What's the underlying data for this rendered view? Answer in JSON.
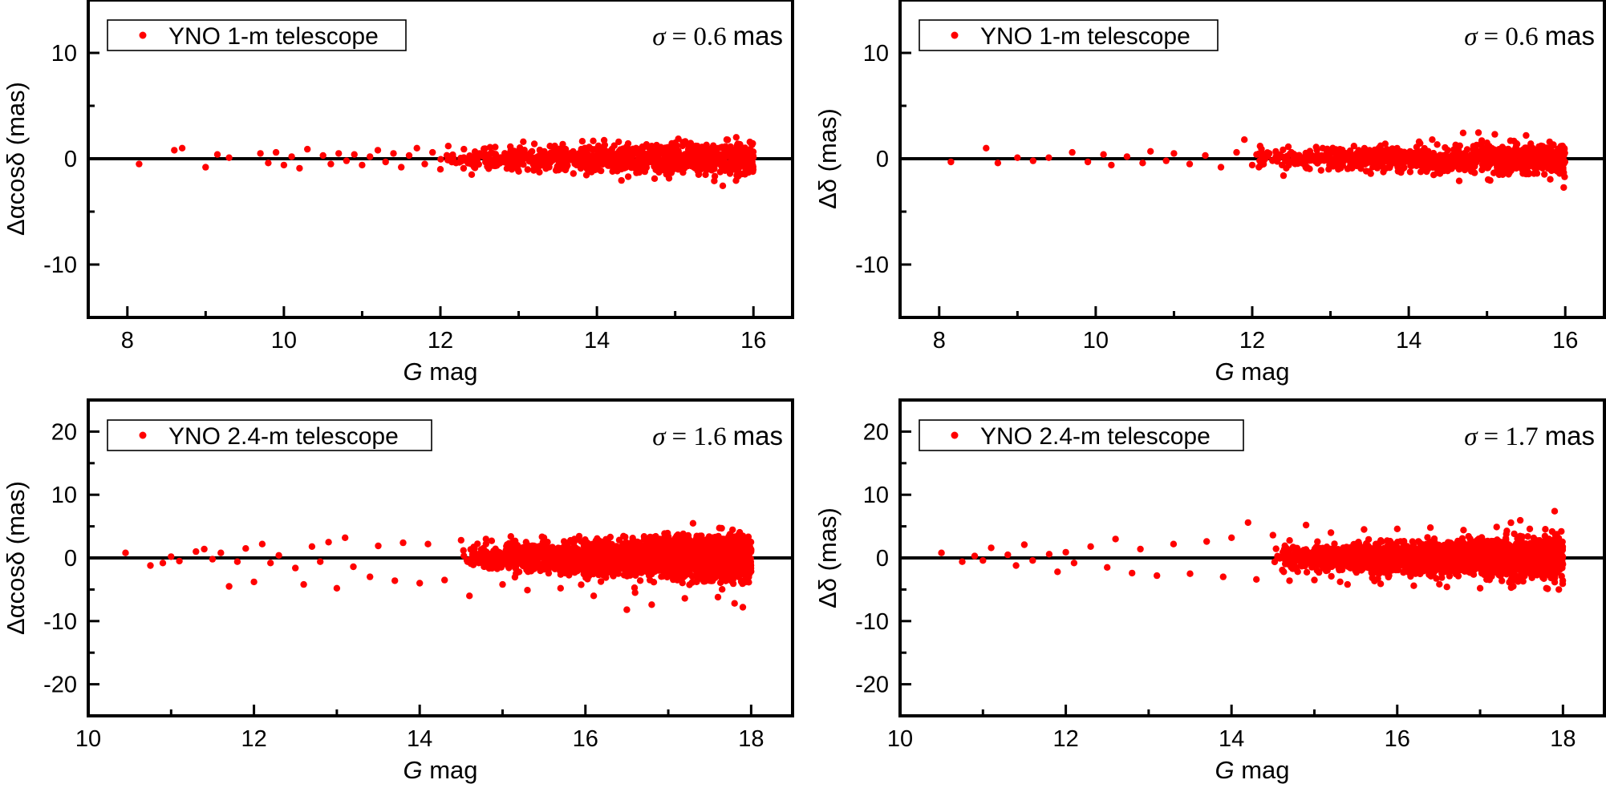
{
  "chart_data": [
    {
      "type": "scatter",
      "legend_label": "YNO 1-m telescope",
      "legend_placement": "top-left",
      "sigma_label": "σ = 0.6 mas",
      "sigma_symbol": "σ",
      "sigma_value": "= 0.6",
      "sigma_unit": "mas",
      "xlabel_italic": "G",
      "xlabel_rest": " mag",
      "ylabel": "Δαcosδ (mas)",
      "xlim": [
        7.5,
        16.5
      ],
      "ylim": [
        -15,
        15
      ],
      "xticks": [
        8,
        10,
        12,
        14,
        16
      ],
      "yticks": [
        -10,
        0,
        10
      ],
      "color": "#ff0000",
      "points": [
        [
          8.15,
          -0.5
        ],
        [
          8.6,
          0.8
        ],
        [
          8.7,
          1.0
        ],
        [
          9.0,
          -0.8
        ],
        [
          9.15,
          0.4
        ],
        [
          9.3,
          0.1
        ],
        [
          9.7,
          0.5
        ],
        [
          9.8,
          -0.4
        ],
        [
          9.9,
          0.6
        ],
        [
          10.0,
          -0.6
        ],
        [
          10.1,
          0.2
        ],
        [
          10.2,
          -0.9
        ],
        [
          10.3,
          0.9
        ],
        [
          10.5,
          0.3
        ],
        [
          10.6,
          -0.5
        ],
        [
          10.7,
          0.5
        ],
        [
          10.8,
          -0.2
        ],
        [
          10.9,
          0.4
        ],
        [
          11.0,
          -0.6
        ],
        [
          11.1,
          0.2
        ],
        [
          11.2,
          0.8
        ],
        [
          11.3,
          -0.3
        ],
        [
          11.4,
          0.5
        ],
        [
          11.5,
          -0.8
        ],
        [
          11.6,
          0.3
        ],
        [
          11.7,
          1.0
        ],
        [
          11.8,
          -0.5
        ],
        [
          11.9,
          0.6
        ],
        [
          12.0,
          -1.0
        ],
        [
          12.1,
          1.2
        ],
        [
          12.2,
          -0.4
        ],
        [
          12.3,
          0.9
        ],
        [
          12.4,
          -1.5
        ],
        [
          12.5,
          0.5
        ],
        [
          12.6,
          -0.7
        ],
        [
          12.7,
          1.1
        ],
        [
          12.8,
          -0.3
        ],
        [
          12.9,
          0.8
        ],
        [
          13.0,
          -1.2
        ],
        [
          13.1,
          0.4
        ],
        [
          13.2,
          1.4
        ],
        [
          13.3,
          -0.6
        ],
        [
          13.4,
          1.2
        ],
        [
          13.5,
          -1.0
        ],
        [
          13.6,
          0.9
        ],
        [
          13.7,
          -1.4
        ],
        [
          13.8,
          0.6
        ],
        [
          13.9,
          1.1
        ],
        [
          14.0,
          -0.9
        ],
        [
          14.1,
          1.3
        ],
        [
          14.2,
          -1.2
        ],
        [
          14.3,
          0.8
        ],
        [
          14.4,
          -1.7
        ],
        [
          14.5,
          1.0
        ],
        [
          14.6,
          -0.8
        ],
        [
          14.7,
          1.2
        ],
        [
          14.8,
          -1.1
        ],
        [
          14.9,
          0.7
        ],
        [
          15.0,
          1.5
        ],
        [
          15.1,
          -1.3
        ],
        [
          15.2,
          1.0
        ],
        [
          15.3,
          -1.5
        ],
        [
          15.4,
          1.3
        ],
        [
          15.5,
          -2.1
        ],
        [
          15.6,
          1.1
        ],
        [
          15.7,
          -1.4
        ],
        [
          15.8,
          1.4
        ],
        [
          15.9,
          -1.0
        ],
        [
          15.98,
          1.3
        ],
        [
          15.98,
          -1.1
        ]
      ],
      "density_x_range": [
        12.0,
        16.0
      ],
      "density_spread": [
        0.7,
        1.4
      ],
      "density_count": 950
    },
    {
      "type": "scatter",
      "legend_label": "YNO 1-m telescope",
      "legend_placement": "top-left",
      "sigma_label": "σ = 0.6 mas",
      "sigma_symbol": "σ",
      "sigma_value": "= 0.6",
      "sigma_unit": "mas",
      "xlabel_italic": "G",
      "xlabel_rest": " mag",
      "ylabel": "Δδ (mas)",
      "xlim": [
        7.5,
        16.5
      ],
      "ylim": [
        -15,
        15
      ],
      "xticks": [
        8,
        10,
        12,
        14,
        16
      ],
      "yticks": [
        -10,
        0,
        10
      ],
      "color": "#ff0000",
      "points": [
        [
          8.15,
          -0.3
        ],
        [
          8.6,
          1.0
        ],
        [
          8.75,
          -0.4
        ],
        [
          9.0,
          0.1
        ],
        [
          9.2,
          -0.2
        ],
        [
          9.4,
          0.1
        ],
        [
          9.7,
          0.6
        ],
        [
          9.9,
          -0.3
        ],
        [
          10.1,
          0.4
        ],
        [
          10.2,
          -0.6
        ],
        [
          10.4,
          0.2
        ],
        [
          10.6,
          -0.4
        ],
        [
          10.7,
          0.7
        ],
        [
          10.9,
          -0.2
        ],
        [
          11.0,
          0.5
        ],
        [
          11.2,
          -0.5
        ],
        [
          11.4,
          0.3
        ],
        [
          11.6,
          -0.8
        ],
        [
          11.8,
          0.6
        ],
        [
          11.9,
          1.8
        ],
        [
          12.0,
          -0.6
        ],
        [
          12.1,
          1.2
        ],
        [
          12.2,
          0.2
        ],
        [
          12.4,
          -1.6
        ],
        [
          12.5,
          0.6
        ],
        [
          12.7,
          -0.8
        ],
        [
          12.9,
          1.0
        ],
        [
          13.1,
          -1.0
        ],
        [
          13.3,
          1.2
        ],
        [
          13.5,
          -1.2
        ],
        [
          13.7,
          1.4
        ],
        [
          13.9,
          -1.3
        ],
        [
          14.1,
          1.1
        ],
        [
          14.3,
          1.8
        ],
        [
          14.4,
          -1.4
        ],
        [
          14.6,
          1.3
        ],
        [
          14.8,
          -1.2
        ],
        [
          15.0,
          1.5
        ],
        [
          15.1,
          2.3
        ],
        [
          15.2,
          -1.5
        ],
        [
          15.3,
          1.7
        ],
        [
          15.5,
          2.2
        ],
        [
          15.6,
          -1.4
        ],
        [
          15.8,
          1.6
        ],
        [
          15.9,
          -1.2
        ],
        [
          15.98,
          1.0
        ],
        [
          15.98,
          -1.3
        ]
      ],
      "density_x_range": [
        12.0,
        16.0
      ],
      "density_spread": [
        0.7,
        1.4
      ],
      "density_count": 950
    },
    {
      "type": "scatter",
      "legend_label": "YNO 2.4-m telescope",
      "legend_placement": "top-left",
      "sigma_label": "σ = 1.6 mas",
      "sigma_symbol": "σ",
      "sigma_value": "= 1.6",
      "sigma_unit": "mas",
      "xlabel_italic": "G",
      "xlabel_rest": " mag",
      "ylabel": "Δαcosδ (mas)",
      "xlim": [
        10,
        18.5
      ],
      "ylim": [
        -25,
        25
      ],
      "xticks": [
        10,
        12,
        14,
        16,
        18
      ],
      "yticks": [
        -20,
        -10,
        0,
        10,
        20
      ],
      "color": "#ff0000",
      "points": [
        [
          10.45,
          0.8
        ],
        [
          10.75,
          -1.2
        ],
        [
          10.9,
          -0.8
        ],
        [
          11.0,
          0.2
        ],
        [
          11.1,
          -0.5
        ],
        [
          11.3,
          1.0
        ],
        [
          11.4,
          1.4
        ],
        [
          11.5,
          -0.2
        ],
        [
          11.6,
          0.8
        ],
        [
          11.7,
          -4.5
        ],
        [
          11.8,
          -0.6
        ],
        [
          11.9,
          1.5
        ],
        [
          12.0,
          -3.8
        ],
        [
          12.1,
          2.2
        ],
        [
          12.2,
          -0.8
        ],
        [
          12.3,
          0.4
        ],
        [
          12.5,
          -1.6
        ],
        [
          12.6,
          -4.2
        ],
        [
          12.7,
          1.8
        ],
        [
          12.8,
          -0.6
        ],
        [
          12.9,
          2.5
        ],
        [
          13.0,
          -4.8
        ],
        [
          13.1,
          3.2
        ],
        [
          13.2,
          -1.4
        ],
        [
          13.4,
          -3.0
        ],
        [
          13.5,
          1.9
        ],
        [
          13.7,
          -3.6
        ],
        [
          13.8,
          2.4
        ],
        [
          14.0,
          -4.0
        ],
        [
          14.1,
          2.2
        ],
        [
          14.3,
          -3.5
        ],
        [
          14.5,
          2.8
        ],
        [
          14.6,
          -6.0
        ],
        [
          14.8,
          3.0
        ],
        [
          15.0,
          -4.2
        ],
        [
          15.1,
          3.4
        ],
        [
          15.3,
          -5.1
        ],
        [
          15.5,
          3.2
        ],
        [
          15.7,
          -4.8
        ],
        [
          15.9,
          2.9
        ],
        [
          16.1,
          -6.0
        ],
        [
          16.3,
          3.3
        ],
        [
          16.5,
          -8.2
        ],
        [
          16.6,
          -5.5
        ],
        [
          16.8,
          -7.4
        ],
        [
          17.0,
          3.4
        ],
        [
          17.2,
          -6.4
        ],
        [
          17.4,
          3.5
        ],
        [
          17.6,
          -6.2
        ],
        [
          17.8,
          -7.2
        ],
        [
          17.9,
          -7.8
        ],
        [
          17.95,
          3.0
        ]
      ],
      "density_x_range": [
        14.5,
        18.0
      ],
      "density_spread": [
        1.6,
        3.2
      ],
      "density_count": 2600
    },
    {
      "type": "scatter",
      "legend_label": "YNO 2.4-m telescope",
      "legend_placement": "top-left",
      "sigma_label": "σ = 1.7 mas",
      "sigma_symbol": "σ",
      "sigma_value": "= 1.7",
      "sigma_unit": "mas",
      "xlabel_italic": "G",
      "xlabel_rest": " mag",
      "ylabel": "Δδ (mas)",
      "xlim": [
        10,
        18.5
      ],
      "ylim": [
        -25,
        25
      ],
      "xticks": [
        10,
        12,
        14,
        16,
        18
      ],
      "yticks": [
        -20,
        -10,
        0,
        10,
        20
      ],
      "color": "#ff0000",
      "points": [
        [
          10.5,
          0.8
        ],
        [
          10.75,
          -0.6
        ],
        [
          10.9,
          0.3
        ],
        [
          11.0,
          -0.4
        ],
        [
          11.1,
          1.6
        ],
        [
          11.3,
          0.5
        ],
        [
          11.4,
          -1.2
        ],
        [
          11.5,
          2.1
        ],
        [
          11.6,
          -0.4
        ],
        [
          11.8,
          0.6
        ],
        [
          11.9,
          -2.2
        ],
        [
          12.0,
          0.9
        ],
        [
          12.1,
          -0.8
        ],
        [
          12.3,
          1.8
        ],
        [
          12.5,
          -1.5
        ],
        [
          12.6,
          3.0
        ],
        [
          12.8,
          -2.4
        ],
        [
          12.9,
          1.4
        ],
        [
          13.1,
          -2.8
        ],
        [
          13.3,
          2.2
        ],
        [
          13.5,
          -2.5
        ],
        [
          13.7,
          2.6
        ],
        [
          13.9,
          -3.0
        ],
        [
          14.0,
          3.2
        ],
        [
          14.2,
          5.6
        ],
        [
          14.3,
          -3.4
        ],
        [
          14.5,
          3.6
        ],
        [
          14.7,
          -3.6
        ],
        [
          14.9,
          5.2
        ],
        [
          15.0,
          -3.5
        ],
        [
          15.2,
          4.0
        ],
        [
          15.4,
          -4.2
        ],
        [
          15.6,
          4.5
        ],
        [
          15.8,
          -4.1
        ],
        [
          16.0,
          4.6
        ],
        [
          16.2,
          -4.4
        ],
        [
          16.4,
          4.8
        ],
        [
          16.6,
          -4.6
        ],
        [
          16.8,
          4.4
        ],
        [
          17.0,
          -4.8
        ],
        [
          17.2,
          4.9
        ],
        [
          17.4,
          -4.5
        ],
        [
          17.6,
          4.6
        ],
        [
          17.8,
          -4.8
        ],
        [
          17.9,
          7.4
        ],
        [
          17.95,
          -5.0
        ],
        [
          17.98,
          4.2
        ]
      ],
      "density_x_range": [
        14.5,
        18.0
      ],
      "density_spread": [
        1.6,
        3.0
      ],
      "density_count": 2600
    }
  ]
}
